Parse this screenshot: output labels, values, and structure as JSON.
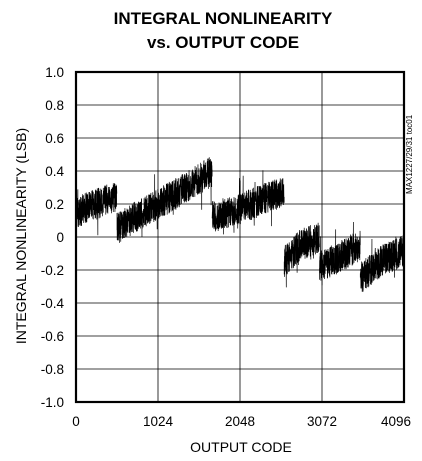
{
  "chart_data": {
    "type": "line",
    "title": "INTEGRAL NONLINEARITY",
    "subtitle": "vs. OUTPUT CODE",
    "xlabel": "OUTPUT CODE",
    "ylabel": "INTEGRAL NONLINEARITY (LSB)",
    "figure_id": "MAX1227/29/31 toc01",
    "xlim": [
      0,
      4096
    ],
    "ylim": [
      -1.0,
      1.0
    ],
    "grid": true,
    "x_ticks": [
      0,
      1024,
      2048,
      3072,
      4096
    ],
    "x_tick_labels": [
      "0",
      "1024",
      "2048",
      "3072",
      "4096"
    ],
    "y_ticks": [
      1.0,
      0.8,
      0.6,
      0.4,
      0.2,
      0,
      -0.2,
      -0.4,
      -0.6,
      -0.8,
      -1.0
    ],
    "y_tick_labels": [
      "1.0",
      "0.8",
      "0.6",
      "0.4",
      "0.2",
      "0",
      "-0.2",
      "-0.4",
      "-0.6",
      "-0.8",
      "-1.0"
    ],
    "line_color": "#000000",
    "series": [
      {
        "segments": [
          {
            "x": [
              0,
              256,
              512
            ],
            "y": [
              0.15,
              0.2,
              0.25
            ],
            "spread": 0.12
          },
          {
            "x": [
              512,
              768,
              1024
            ],
            "y": [
              0.05,
              0.13,
              0.2
            ],
            "spread": 0.12
          },
          {
            "x": [
              1024,
              1280,
              1536,
              1700
            ],
            "y": [
              0.2,
              0.27,
              0.35,
              0.4
            ],
            "spread": 0.12
          },
          {
            "x": [
              1700,
              2048,
              2300,
              2600
            ],
            "y": [
              0.12,
              0.17,
              0.22,
              0.28
            ],
            "spread": 0.12
          },
          {
            "x": [
              2600,
              2800,
              3040
            ],
            "y": [
              -0.15,
              -0.05,
              0.0
            ],
            "spread": 0.12
          },
          {
            "x": [
              3040,
              3300,
              3550
            ],
            "y": [
              -0.18,
              -0.12,
              -0.05
            ],
            "spread": 0.12
          },
          {
            "x": [
              3550,
              3800,
              4096
            ],
            "y": [
              -0.25,
              -0.15,
              -0.08
            ],
            "spread": 0.12
          }
        ]
      }
    ]
  }
}
